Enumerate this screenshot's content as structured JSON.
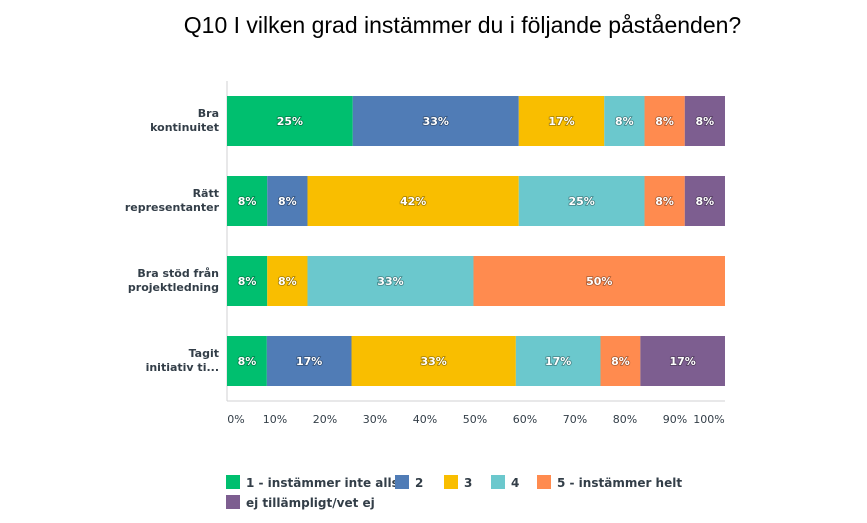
{
  "chart_data": {
    "type": "bar",
    "orientation": "horizontal",
    "stacked": true,
    "title": "Q10 I vilken grad instämmer du i följande påståenden?",
    "categories": [
      [
        "Bra",
        "kontinuitet"
      ],
      [
        "Rätt",
        "representanter"
      ],
      [
        "Bra stöd från",
        "projektledning"
      ],
      [
        "Tagit",
        "initiativ ti..."
      ]
    ],
    "series": [
      {
        "name": "1 - instämmer inte alls",
        "color": "#00bf6f",
        "values": [
          25,
          8,
          8,
          8
        ],
        "labels": [
          "25%",
          "8%",
          "8%",
          "8%"
        ]
      },
      {
        "name": "2",
        "color": "#507cb6",
        "values": [
          33,
          8,
          0,
          17
        ],
        "labels": [
          "33%",
          "8%",
          "",
          "17%"
        ]
      },
      {
        "name": "3",
        "color": "#f9be00",
        "values": [
          17,
          42,
          8,
          33
        ],
        "labels": [
          "17%",
          "42%",
          "8%",
          "33%"
        ]
      },
      {
        "name": "4",
        "color": "#6bc8cd",
        "values": [
          8,
          25,
          33,
          17
        ],
        "labels": [
          "8%",
          "25%",
          "33%",
          "17%"
        ]
      },
      {
        "name": "5 - instämmer helt",
        "color": "#ff8b4f",
        "values": [
          8,
          8,
          50,
          8
        ],
        "labels": [
          "8%",
          "8%",
          "50%",
          "8%"
        ]
      },
      {
        "name": "ej tillämpligt/vet ej",
        "color": "#7d5e90",
        "values": [
          8,
          8,
          0,
          17
        ],
        "labels": [
          "8%",
          "8%",
          "",
          "17%"
        ]
      }
    ],
    "xlim": [
      0,
      100
    ],
    "xticks": [
      "0%",
      "10%",
      "20%",
      "30%",
      "40%",
      "50%",
      "60%",
      "70%",
      "80%",
      "90%",
      "100%"
    ],
    "legend_position": "bottom"
  }
}
